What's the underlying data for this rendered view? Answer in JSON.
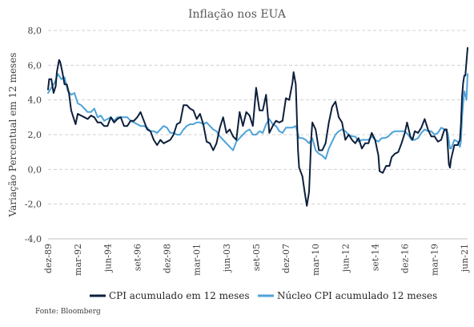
{
  "chart_data": {
    "type": "line",
    "title": "Inflação nos EUA",
    "ylabel": "Variação Percentual em 12 meses",
    "xlabel": "",
    "source": "Fonte: Bloomberg",
    "ylim": [
      -4.0,
      8.0
    ],
    "y_ticks": [
      "8,0",
      "6,0",
      "4,0",
      "2,0",
      "0,0",
      "-2,0",
      "-4,0"
    ],
    "y_tick_values": [
      8,
      6,
      4,
      2,
      0,
      -2,
      -4
    ],
    "x_range": [
      "1989-12",
      "2021-09"
    ],
    "x_ticks": [
      {
        "label": "dez-89",
        "date": "1989-12"
      },
      {
        "label": "mar-92",
        "date": "1992-03"
      },
      {
        "label": "jun-94",
        "date": "1994-06"
      },
      {
        "label": "set-96",
        "date": "1996-09"
      },
      {
        "label": "dez-98",
        "date": "1998-12"
      },
      {
        "label": "mar-01",
        "date": "2001-03"
      },
      {
        "label": "jun-03",
        "date": "2003-06"
      },
      {
        "label": "set-05",
        "date": "2005-09"
      },
      {
        "label": "dez-07",
        "date": "2007-12"
      },
      {
        "label": "mar-10",
        "date": "2010-03"
      },
      {
        "label": "jun-12",
        "date": "2012-06"
      },
      {
        "label": "set-14",
        "date": "2014-09"
      },
      {
        "label": "dez-16",
        "date": "2016-12"
      },
      {
        "label": "mar-19",
        "date": "2019-03"
      },
      {
        "label": "jun-21",
        "date": "2021-06"
      }
    ],
    "grid": true,
    "legend_position": "bottom",
    "series": [
      {
        "name": "CPI acumulado em 12 meses",
        "color": "#0d1f3c",
        "points": [
          [
            "1989-12",
            4.6
          ],
          [
            "1990-01",
            5.2
          ],
          [
            "1990-03",
            5.2
          ],
          [
            "1990-05",
            4.4
          ],
          [
            "1990-07",
            4.8
          ],
          [
            "1990-08",
            5.6
          ],
          [
            "1990-10",
            6.3
          ],
          [
            "1990-11",
            6.2
          ],
          [
            "1991-01",
            5.6
          ],
          [
            "1991-03",
            4.9
          ],
          [
            "1991-05",
            4.9
          ],
          [
            "1991-07",
            4.4
          ],
          [
            "1991-09",
            3.4
          ],
          [
            "1991-11",
            3.0
          ],
          [
            "1992-01",
            2.6
          ],
          [
            "1992-03",
            3.2
          ],
          [
            "1992-06",
            3.1
          ],
          [
            "1992-09",
            3.0
          ],
          [
            "1992-12",
            2.9
          ],
          [
            "1993-03",
            3.1
          ],
          [
            "1993-06",
            3.0
          ],
          [
            "1993-09",
            2.7
          ],
          [
            "1993-12",
            2.7
          ],
          [
            "1994-03",
            2.5
          ],
          [
            "1994-06",
            2.5
          ],
          [
            "1994-09",
            3.0
          ],
          [
            "1994-12",
            2.7
          ],
          [
            "1995-03",
            2.9
          ],
          [
            "1995-06",
            3.0
          ],
          [
            "1995-09",
            2.5
          ],
          [
            "1995-12",
            2.5
          ],
          [
            "1996-03",
            2.8
          ],
          [
            "1996-06",
            2.8
          ],
          [
            "1996-09",
            3.0
          ],
          [
            "1996-12",
            3.3
          ],
          [
            "1997-03",
            2.8
          ],
          [
            "1997-06",
            2.3
          ],
          [
            "1997-09",
            2.2
          ],
          [
            "1997-12",
            1.7
          ],
          [
            "1998-03",
            1.4
          ],
          [
            "1998-06",
            1.7
          ],
          [
            "1998-09",
            1.5
          ],
          [
            "1998-12",
            1.6
          ],
          [
            "1999-03",
            1.7
          ],
          [
            "1999-06",
            2.0
          ],
          [
            "1999-09",
            2.6
          ],
          [
            "1999-12",
            2.7
          ],
          [
            "2000-03",
            3.7
          ],
          [
            "2000-06",
            3.7
          ],
          [
            "2000-09",
            3.5
          ],
          [
            "2000-12",
            3.4
          ],
          [
            "2001-03",
            2.9
          ],
          [
            "2001-06",
            3.2
          ],
          [
            "2001-09",
            2.6
          ],
          [
            "2001-12",
            1.6
          ],
          [
            "2002-03",
            1.5
          ],
          [
            "2002-06",
            1.1
          ],
          [
            "2002-09",
            1.5
          ],
          [
            "2002-12",
            2.4
          ],
          [
            "2003-03",
            3.0
          ],
          [
            "2003-06",
            2.1
          ],
          [
            "2003-09",
            2.3
          ],
          [
            "2003-12",
            1.9
          ],
          [
            "2004-03",
            1.7
          ],
          [
            "2004-06",
            3.3
          ],
          [
            "2004-09",
            2.5
          ],
          [
            "2004-12",
            3.3
          ],
          [
            "2005-03",
            3.1
          ],
          [
            "2005-06",
            2.5
          ],
          [
            "2005-09",
            4.7
          ],
          [
            "2005-12",
            3.4
          ],
          [
            "2006-03",
            3.4
          ],
          [
            "2006-06",
            4.3
          ],
          [
            "2006-09",
            2.1
          ],
          [
            "2006-12",
            2.5
          ],
          [
            "2007-03",
            2.8
          ],
          [
            "2007-06",
            2.7
          ],
          [
            "2007-09",
            2.8
          ],
          [
            "2007-12",
            4.1
          ],
          [
            "2008-03",
            4.0
          ],
          [
            "2008-06",
            5.0
          ],
          [
            "2008-07",
            5.6
          ],
          [
            "2008-09",
            4.9
          ],
          [
            "2008-11",
            1.1
          ],
          [
            "2008-12",
            0.1
          ],
          [
            "2009-03",
            -0.4
          ],
          [
            "2009-05",
            -1.3
          ],
          [
            "2009-07",
            -2.1
          ],
          [
            "2009-09",
            -1.3
          ],
          [
            "2009-11",
            1.8
          ],
          [
            "2009-12",
            2.7
          ],
          [
            "2010-03",
            2.3
          ],
          [
            "2010-06",
            1.1
          ],
          [
            "2010-09",
            1.1
          ],
          [
            "2010-12",
            1.5
          ],
          [
            "2011-03",
            2.7
          ],
          [
            "2011-06",
            3.6
          ],
          [
            "2011-09",
            3.9
          ],
          [
            "2011-12",
            3.0
          ],
          [
            "2012-03",
            2.7
          ],
          [
            "2012-06",
            1.7
          ],
          [
            "2012-09",
            2.0
          ],
          [
            "2012-12",
            1.7
          ],
          [
            "2013-03",
            1.5
          ],
          [
            "2013-06",
            1.8
          ],
          [
            "2013-09",
            1.2
          ],
          [
            "2013-12",
            1.5
          ],
          [
            "2014-03",
            1.5
          ],
          [
            "2014-06",
            2.1
          ],
          [
            "2014-09",
            1.7
          ],
          [
            "2014-12",
            0.8
          ],
          [
            "2015-01",
            -0.1
          ],
          [
            "2015-04",
            -0.2
          ],
          [
            "2015-07",
            0.2
          ],
          [
            "2015-10",
            0.2
          ],
          [
            "2015-12",
            0.7
          ],
          [
            "2016-03",
            0.9
          ],
          [
            "2016-06",
            1.0
          ],
          [
            "2016-09",
            1.5
          ],
          [
            "2016-12",
            2.1
          ],
          [
            "2017-02",
            2.7
          ],
          [
            "2017-05",
            1.9
          ],
          [
            "2017-07",
            1.7
          ],
          [
            "2017-09",
            2.2
          ],
          [
            "2017-12",
            2.1
          ],
          [
            "2018-03",
            2.4
          ],
          [
            "2018-06",
            2.9
          ],
          [
            "2018-09",
            2.3
          ],
          [
            "2018-12",
            1.9
          ],
          [
            "2019-03",
            1.9
          ],
          [
            "2019-06",
            1.6
          ],
          [
            "2019-09",
            1.7
          ],
          [
            "2019-12",
            2.3
          ],
          [
            "2020-02",
            2.3
          ],
          [
            "2020-04",
            0.3
          ],
          [
            "2020-05",
            0.1
          ],
          [
            "2020-06",
            0.6
          ],
          [
            "2020-09",
            1.4
          ],
          [
            "2020-12",
            1.4
          ],
          [
            "2021-02",
            1.7
          ],
          [
            "2021-03",
            2.6
          ],
          [
            "2021-04",
            4.2
          ],
          [
            "2021-05",
            5.0
          ],
          [
            "2021-06",
            5.4
          ],
          [
            "2021-07",
            5.4
          ],
          [
            "2021-08",
            6.2
          ],
          [
            "2021-09",
            7.0
          ]
        ]
      },
      {
        "name": "Núcleo CPI acumulado 12 meses",
        "color": "#4ea3d9",
        "points": [
          [
            "1989-12",
            4.4
          ],
          [
            "1990-03",
            4.7
          ],
          [
            "1990-06",
            5.0
          ],
          [
            "1990-09",
            5.5
          ],
          [
            "1990-12",
            5.2
          ],
          [
            "1991-03",
            5.3
          ],
          [
            "1991-06",
            4.5
          ],
          [
            "1991-09",
            4.3
          ],
          [
            "1991-12",
            4.4
          ],
          [
            "1992-03",
            3.8
          ],
          [
            "1992-06",
            3.7
          ],
          [
            "1992-09",
            3.5
          ],
          [
            "1992-12",
            3.3
          ],
          [
            "1993-03",
            3.3
          ],
          [
            "1993-06",
            3.5
          ],
          [
            "1993-09",
            3.0
          ],
          [
            "1993-12",
            3.1
          ],
          [
            "1994-03",
            2.8
          ],
          [
            "1994-06",
            2.9
          ],
          [
            "1994-09",
            3.0
          ],
          [
            "1994-12",
            2.8
          ],
          [
            "1995-03",
            3.0
          ],
          [
            "1995-06",
            3.0
          ],
          [
            "1995-09",
            3.0
          ],
          [
            "1995-12",
            3.0
          ],
          [
            "1996-03",
            2.8
          ],
          [
            "1996-06",
            2.7
          ],
          [
            "1996-09",
            2.6
          ],
          [
            "1996-12",
            2.5
          ],
          [
            "1997-03",
            2.5
          ],
          [
            "1997-06",
            2.4
          ],
          [
            "1997-09",
            2.2
          ],
          [
            "1997-12",
            2.2
          ],
          [
            "1998-03",
            2.1
          ],
          [
            "1998-06",
            2.3
          ],
          [
            "1998-09",
            2.5
          ],
          [
            "1998-12",
            2.4
          ],
          [
            "1999-03",
            2.1
          ],
          [
            "1999-06",
            2.1
          ],
          [
            "1999-09",
            2.0
          ],
          [
            "1999-12",
            2.0
          ],
          [
            "2000-03",
            2.3
          ],
          [
            "2000-06",
            2.5
          ],
          [
            "2000-09",
            2.6
          ],
          [
            "2000-12",
            2.6
          ],
          [
            "2001-03",
            2.7
          ],
          [
            "2001-06",
            2.7
          ],
          [
            "2001-09",
            2.6
          ],
          [
            "2001-12",
            2.7
          ],
          [
            "2002-03",
            2.5
          ],
          [
            "2002-06",
            2.3
          ],
          [
            "2002-09",
            2.2
          ],
          [
            "2002-12",
            1.9
          ],
          [
            "2003-03",
            1.7
          ],
          [
            "2003-06",
            1.5
          ],
          [
            "2003-09",
            1.3
          ],
          [
            "2003-12",
            1.1
          ],
          [
            "2004-03",
            1.6
          ],
          [
            "2004-06",
            1.8
          ],
          [
            "2004-09",
            2.0
          ],
          [
            "2004-12",
            2.2
          ],
          [
            "2005-03",
            2.3
          ],
          [
            "2005-06",
            2.0
          ],
          [
            "2005-09",
            2.0
          ],
          [
            "2005-12",
            2.2
          ],
          [
            "2006-03",
            2.1
          ],
          [
            "2006-06",
            2.6
          ],
          [
            "2006-09",
            2.9
          ],
          [
            "2006-12",
            2.6
          ],
          [
            "2007-03",
            2.5
          ],
          [
            "2007-06",
            2.2
          ],
          [
            "2007-09",
            2.1
          ],
          [
            "2007-12",
            2.4
          ],
          [
            "2008-03",
            2.4
          ],
          [
            "2008-06",
            2.4
          ],
          [
            "2008-09",
            2.5
          ],
          [
            "2008-12",
            1.8
          ],
          [
            "2009-03",
            1.8
          ],
          [
            "2009-06",
            1.7
          ],
          [
            "2009-09",
            1.5
          ],
          [
            "2009-12",
            1.8
          ],
          [
            "2010-03",
            1.1
          ],
          [
            "2010-06",
            0.9
          ],
          [
            "2010-09",
            0.8
          ],
          [
            "2010-12",
            0.6
          ],
          [
            "2011-03",
            1.2
          ],
          [
            "2011-06",
            1.6
          ],
          [
            "2011-09",
            2.0
          ],
          [
            "2011-12",
            2.2
          ],
          [
            "2012-03",
            2.3
          ],
          [
            "2012-06",
            2.2
          ],
          [
            "2012-09",
            2.0
          ],
          [
            "2012-12",
            1.9
          ],
          [
            "2013-03",
            1.9
          ],
          [
            "2013-06",
            1.6
          ],
          [
            "2013-09",
            1.7
          ],
          [
            "2013-12",
            1.7
          ],
          [
            "2014-03",
            1.7
          ],
          [
            "2014-06",
            1.9
          ],
          [
            "2014-09",
            1.7
          ],
          [
            "2014-12",
            1.6
          ],
          [
            "2015-03",
            1.8
          ],
          [
            "2015-06",
            1.8
          ],
          [
            "2015-09",
            1.9
          ],
          [
            "2015-12",
            2.1
          ],
          [
            "2016-03",
            2.2
          ],
          [
            "2016-06",
            2.2
          ],
          [
            "2016-09",
            2.2
          ],
          [
            "2016-12",
            2.2
          ],
          [
            "2017-03",
            2.0
          ],
          [
            "2017-06",
            1.7
          ],
          [
            "2017-09",
            1.7
          ],
          [
            "2017-12",
            1.8
          ],
          [
            "2018-03",
            2.1
          ],
          [
            "2018-06",
            2.3
          ],
          [
            "2018-09",
            2.2
          ],
          [
            "2018-12",
            2.2
          ],
          [
            "2019-03",
            2.0
          ],
          [
            "2019-06",
            2.1
          ],
          [
            "2019-09",
            2.4
          ],
          [
            "2019-12",
            2.3
          ],
          [
            "2020-03",
            2.1
          ],
          [
            "2020-05",
            1.2
          ],
          [
            "2020-06",
            1.2
          ],
          [
            "2020-09",
            1.7
          ],
          [
            "2020-12",
            1.6
          ],
          [
            "2021-02",
            1.3
          ],
          [
            "2021-03",
            1.6
          ],
          [
            "2021-04",
            3.0
          ],
          [
            "2021-05",
            3.8
          ],
          [
            "2021-06",
            4.5
          ],
          [
            "2021-07",
            4.3
          ],
          [
            "2021-08",
            4.0
          ],
          [
            "2021-09",
            5.5
          ]
        ]
      }
    ]
  }
}
